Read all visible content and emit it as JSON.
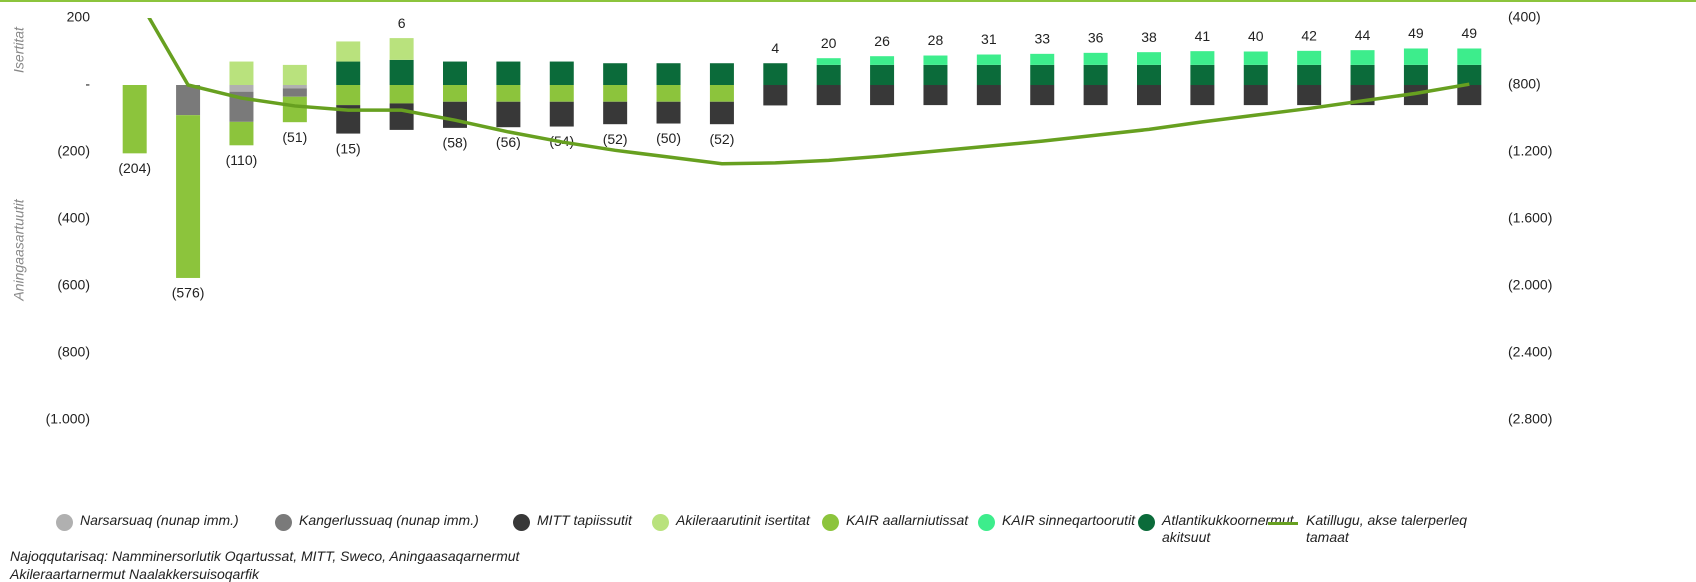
{
  "chart_data": {
    "type": "bar",
    "stacked": true,
    "y_label_top": "Isertitat",
    "y_label_bottom": "Aningaasartuutit",
    "source": "Najoqqutarisaq: Namminersorlutik Oqartussat, MITT, Sweco, Aningaasaqarnermut",
    "source_line2": "Akileraartarnermut Naalakkersuisoqarfik",
    "categories": [
      null,
      null,
      null,
      null,
      null,
      null,
      null,
      null,
      null,
      null,
      null,
      null,
      null,
      null,
      null,
      null,
      null,
      null,
      null,
      null,
      null,
      null,
      null,
      null,
      null,
      null
    ],
    "ylim": [
      -1000,
      200
    ],
    "yticks": [
      200,
      {
        "value": 0,
        "label": "-"
      },
      {
        "value": -200,
        "label": "(200)"
      },
      {
        "value": -400,
        "label": "(400)"
      },
      {
        "value": -600,
        "label": "(600)"
      },
      {
        "value": -800,
        "label": "(800)"
      },
      {
        "value": -1000,
        "label": "(1.000)"
      }
    ],
    "y2lim": [
      -2800,
      -400
    ],
    "y2ticks": [
      {
        "value": -400,
        "label": "(400)"
      },
      {
        "value": -800,
        "label": "(800)"
      },
      {
        "value": -1200,
        "label": "(1.200)"
      },
      {
        "value": -1600,
        "label": "(1.600)"
      },
      {
        "value": -2000,
        "label": "(2.000)"
      },
      {
        "value": -2400,
        "label": "(2.400)"
      },
      {
        "value": -2800,
        "label": "(2.800)"
      }
    ],
    "series": [
      {
        "name": "Narsarsuaq (nunap imm.)",
        "color": "#b0b0b0",
        "values": [
          0,
          0,
          -20,
          -10,
          0,
          0,
          0,
          0,
          0,
          0,
          0,
          0,
          0,
          0,
          0,
          0,
          0,
          0,
          0,
          0,
          0,
          0,
          0,
          0,
          0,
          0
        ]
      },
      {
        "name": "Kangerlussuaq (nunap imm.)",
        "color": "#7a7a7a",
        "values": [
          0,
          -90,
          -90,
          -25,
          0,
          0,
          0,
          0,
          0,
          0,
          0,
          0,
          0,
          0,
          0,
          0,
          0,
          0,
          0,
          0,
          0,
          0,
          0,
          0,
          0,
          0
        ]
      },
      {
        "name": "MITT tapiissutit",
        "color": "#383838",
        "values": [
          0,
          0,
          0,
          0,
          -85,
          -79,
          -78,
          -76,
          -74,
          -67,
          -65,
          -67,
          -61,
          -60,
          -60,
          -60,
          -60,
          -60,
          -60,
          -60,
          -60,
          -60,
          -60,
          -60,
          -60,
          -60
        ]
      },
      {
        "name": "Akileraarutinit isertitat",
        "color": "#b9e27d",
        "values": [
          0,
          0,
          70,
          60,
          60,
          65,
          0,
          0,
          0,
          0,
          0,
          0,
          0,
          0,
          0,
          0,
          0,
          0,
          0,
          0,
          0,
          0,
          0,
          0,
          0,
          0
        ]
      },
      {
        "name": "KAIR aallarniutissat",
        "color": "#8cc43c",
        "values": [
          -204,
          -486,
          -70,
          -76,
          -60,
          -55,
          -50,
          -50,
          -50,
          -50,
          -50,
          -50,
          0,
          0,
          0,
          0,
          0,
          0,
          0,
          0,
          0,
          0,
          0,
          0,
          0,
          0
        ]
      },
      {
        "name": "KAIR sinneqartoorutit",
        "color": "#3ded8c",
        "values": [
          0,
          0,
          0,
          0,
          0,
          0,
          0,
          0,
          0,
          0,
          0,
          0,
          0,
          20,
          26,
          28,
          31,
          33,
          36,
          38,
          41,
          40,
          42,
          44,
          49,
          49
        ]
      },
      {
        "name": "Atlantikukkoornermut akitsuut",
        "color": "#0b6b3a",
        "values": [
          0,
          0,
          0,
          0,
          70,
          75,
          70,
          70,
          70,
          65,
          65,
          65,
          65,
          60,
          60,
          60,
          60,
          60,
          60,
          60,
          60,
          60,
          60,
          60,
          60,
          60
        ]
      },
      {
        "name": "Katillugu, akse talerperleq tamaat",
        "type": "line",
        "axis": "y2",
        "color": "#67a020",
        "values": [
          -250,
          -800,
          -878,
          -925,
          -950,
          -950,
          -1010,
          -1080,
          -1140,
          -1190,
          -1230,
          -1270,
          -1265,
          -1250,
          -1225,
          -1195,
          -1165,
          -1135,
          -1100,
          -1065,
          -1020,
          -980,
          -940,
          -895,
          -850,
          -795
        ]
      }
    ],
    "totals": [
      -204,
      -576,
      -110,
      -51,
      -15,
      6,
      -58,
      -56,
      -54,
      -52,
      -50,
      -52,
      4,
      20,
      26,
      28,
      31,
      33,
      36,
      38,
      41,
      40,
      42,
      44,
      49,
      49
    ],
    "total_labels": [
      "(204)",
      "(576)",
      "(110)",
      "(51)",
      "(15)",
      "6",
      "(58)",
      "(56)",
      "(54)",
      "(52)",
      "(50)",
      "(52)",
      "4",
      "20",
      "26",
      "28",
      "31",
      "33",
      "36",
      "38",
      "41",
      "40",
      "42",
      "44",
      "49",
      "49"
    ]
  }
}
